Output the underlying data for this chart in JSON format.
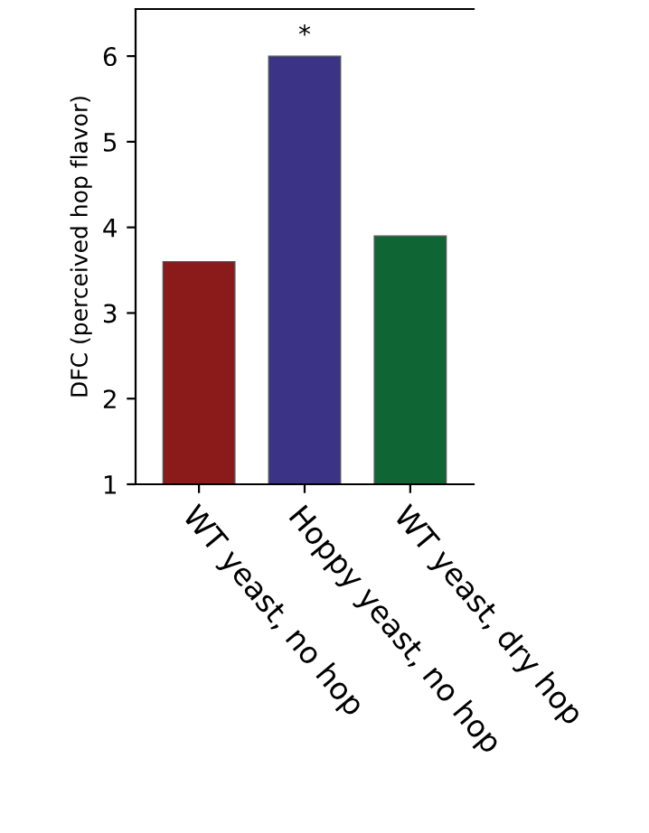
{
  "chart_data": {
    "type": "bar",
    "ylabel": "DFC (perceived hop flavor)",
    "categories": [
      "WT yeast, no hop",
      "Hoppy yeast, no hop",
      "WT yeast, dry hop"
    ],
    "values": [
      3.6,
      6.0,
      3.9
    ],
    "colors": [
      "#8b1a1a",
      "#3b3486",
      "#0f6634"
    ],
    "ylim": [
      1,
      6.55
    ],
    "yticks": [
      1,
      2,
      3,
      4,
      5,
      6
    ],
    "annotations": [
      "*"
    ],
    "grid": false,
    "legend": false
  }
}
